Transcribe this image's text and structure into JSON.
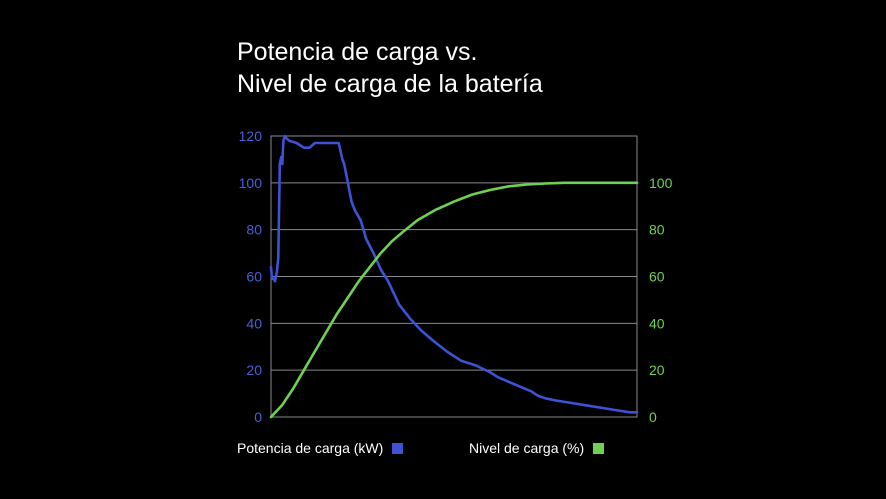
{
  "chart_data": {
    "type": "line",
    "title_lines": [
      "Potencia de carga vs.",
      "Nivel de carga de la batería"
    ],
    "xlabel": "",
    "grid": true,
    "legend_position": "bottom",
    "y_left": {
      "ticks": [
        "0",
        "20",
        "40",
        "60",
        "80",
        "100",
        "120"
      ],
      "ylim": [
        0,
        120
      ],
      "color": "#4a5fd6"
    },
    "y_right": {
      "ticks": [
        "0",
        "20",
        "40",
        "60",
        "80",
        "100"
      ],
      "ylim": [
        0,
        120
      ],
      "color": "#6dd152"
    },
    "xlim": [
      0,
      100
    ],
    "series": [
      {
        "name": "Potencia de carga (kW)",
        "axis": "left",
        "color": "#3d52d5",
        "x": [
          0,
          0.3,
          0.7,
          1.1,
          1.6,
          2.0,
          2.4,
          2.8,
          3.1,
          3.4,
          3.8,
          4.2,
          5.0,
          7.0,
          9.0,
          10.5,
          12.0,
          13.5,
          15.0,
          16.5,
          18.5,
          19.5,
          20.0,
          21.0,
          22.0,
          23.0,
          24.5,
          26.0,
          28.0,
          30.0,
          32.0,
          35.0,
          38.0,
          41.0,
          44.0,
          48.0,
          52.0,
          56.0,
          60.0,
          62.0,
          65.0,
          68.0,
          71.0,
          73.0,
          75.0,
          78.0,
          82.0,
          86.0,
          90.0,
          94.0,
          98.0,
          100.0
        ],
        "values": [
          64,
          59,
          59,
          58,
          62,
          68,
          108,
          111,
          108,
          118,
          120,
          119,
          118,
          117,
          115,
          115,
          117,
          117,
          117,
          117,
          117,
          110,
          108,
          100,
          92,
          88,
          84,
          76,
          70,
          63,
          58,
          48,
          42,
          37,
          33,
          28,
          24,
          22,
          19,
          17,
          15,
          13,
          11,
          9,
          8,
          7,
          6,
          5,
          4,
          3,
          2,
          2
        ]
      },
      {
        "name": "Nivel de carga (%)",
        "axis": "right",
        "color": "#6dd152",
        "x": [
          0,
          3,
          6,
          9,
          12,
          15,
          18,
          21,
          24,
          27,
          30,
          33,
          36,
          40,
          45,
          50,
          55,
          60,
          65,
          70,
          75,
          80,
          85,
          90,
          95,
          100
        ],
        "values": [
          0,
          5,
          12,
          20,
          28,
          36,
          44,
          51,
          58,
          64,
          70,
          75,
          79,
          84,
          88.5,
          92,
          95,
          97,
          98.5,
          99.3,
          99.7,
          100,
          100,
          100,
          100,
          100
        ]
      }
    ]
  }
}
